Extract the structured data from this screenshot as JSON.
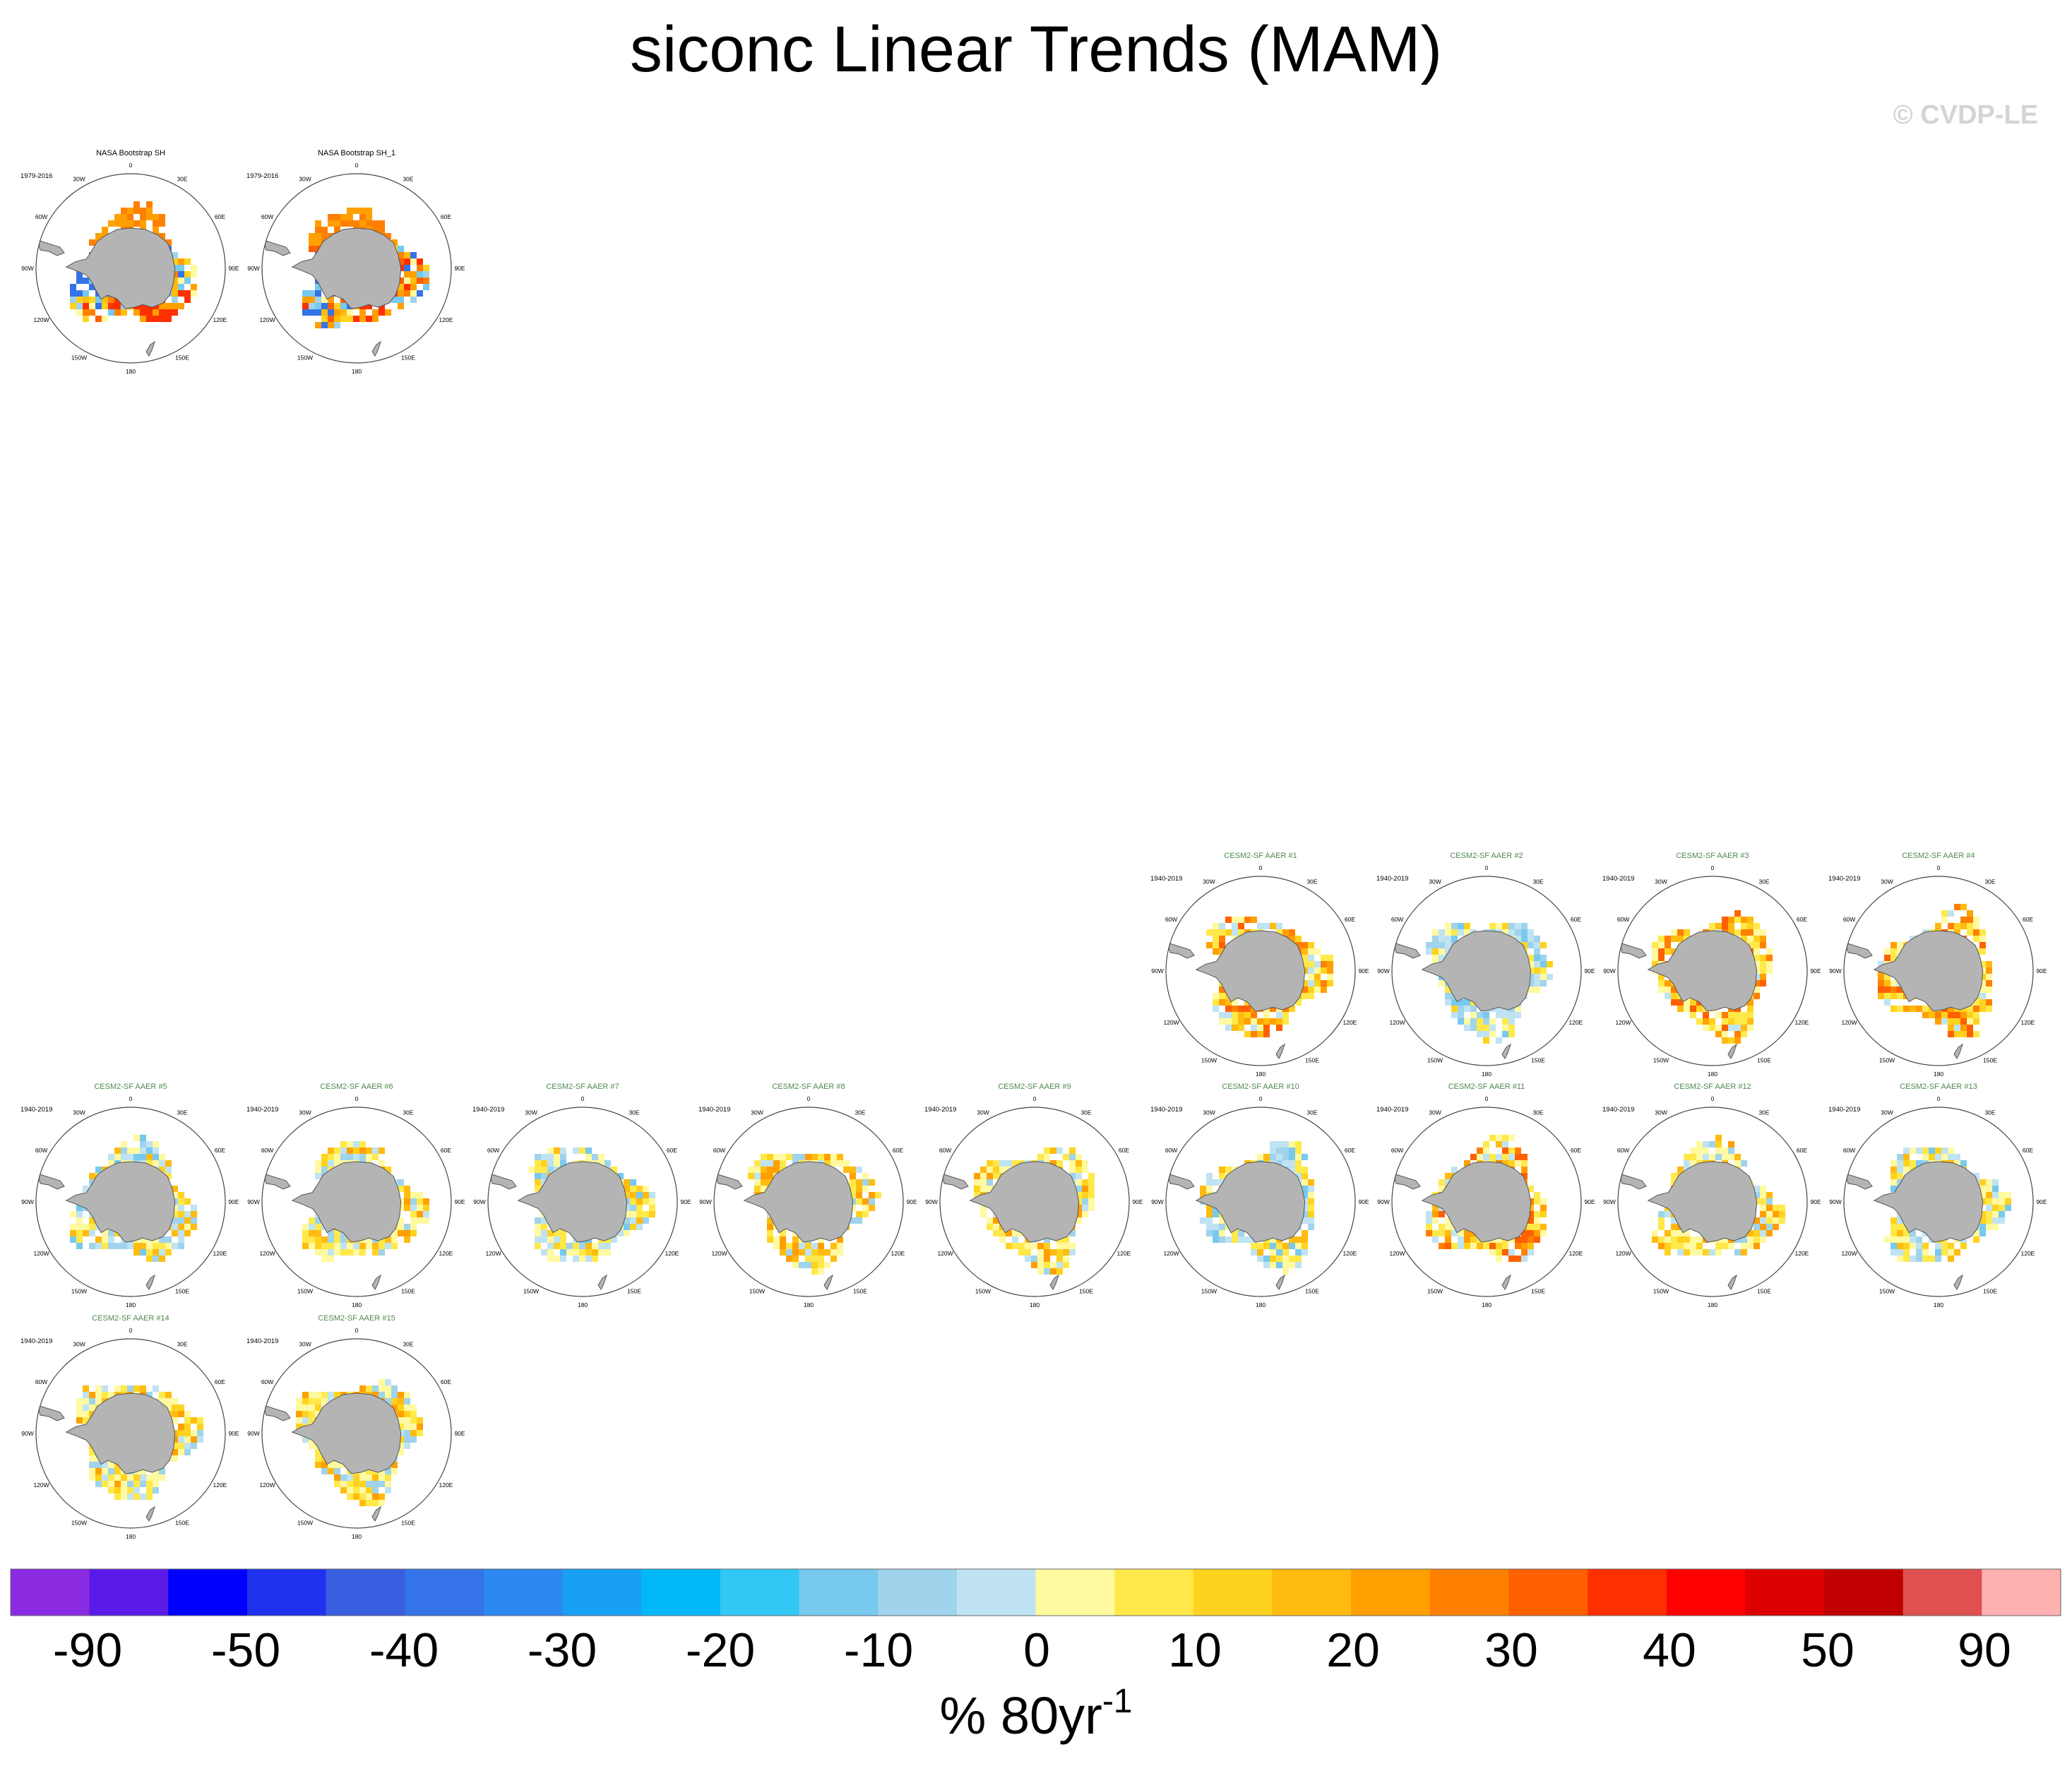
{
  "title": "siconc Linear Trends (MAM)",
  "copyright": "© CVDP-LE",
  "chart_data": {
    "type": "heatmap",
    "title": "siconc Linear Trends (MAM)",
    "map_projection": "south polar stereographic",
    "map_labels": {
      "meridians": [
        "0",
        "30E",
        "60E",
        "90E",
        "120E",
        "150E",
        "180",
        "150W",
        "120W",
        "90W",
        "60W",
        "30W"
      ]
    },
    "panels": [
      {
        "title": "NASA Bootstrap SH",
        "period": "1979-2016",
        "pattern": "obs"
      },
      {
        "title": "NASA Bootstrap SH_1",
        "period": "1979-2016",
        "pattern": "obs"
      },
      {
        "title": "CESM2-SF AAER #1",
        "period": "1940-2019",
        "pattern": "warm"
      },
      {
        "title": "CESM2-SF AAER #2",
        "period": "1940-2019",
        "pattern": "cool"
      },
      {
        "title": "CESM2-SF AAER #3",
        "period": "1940-2019",
        "pattern": "warm"
      },
      {
        "title": "CESM2-SF AAER #4",
        "period": "1940-2019",
        "pattern": "warm"
      },
      {
        "title": "CESM2-SF AAER #5",
        "period": "1940-2019",
        "pattern": "mixed"
      },
      {
        "title": "CESM2-SF AAER #6",
        "period": "1940-2019",
        "pattern": "mild"
      },
      {
        "title": "CESM2-SF AAER #7",
        "period": "1940-2019",
        "pattern": "mixed"
      },
      {
        "title": "CESM2-SF AAER #8",
        "period": "1940-2019",
        "pattern": "mild"
      },
      {
        "title": "CESM2-SF AAER #9",
        "period": "1940-2019",
        "pattern": "mild"
      },
      {
        "title": "CESM2-SF AAER #10",
        "period": "1940-2019",
        "pattern": "mixed"
      },
      {
        "title": "CESM2-SF AAER #11",
        "period": "1940-2019",
        "pattern": "warm"
      },
      {
        "title": "CESM2-SF AAER #12",
        "period": "1940-2019",
        "pattern": "mild"
      },
      {
        "title": "CESM2-SF AAER #13",
        "period": "1940-2019",
        "pattern": "mixed"
      },
      {
        "title": "CESM2-SF AAER #14",
        "period": "1940-2019",
        "pattern": "mild"
      },
      {
        "title": "CESM2-SF AAER #15",
        "period": "1940-2019",
        "pattern": "mild"
      }
    ],
    "colorbar": {
      "units": "% 80yr",
      "units_superscript": "-1",
      "colors": [
        "#8a2be2",
        "#5a1ae8",
        "#0000ff",
        "#1f33ee",
        "#3a5ee0",
        "#3573e8",
        "#2a88f0",
        "#18a0f5",
        "#00b8f8",
        "#33c7f5",
        "#77c9ee",
        "#a0d3ec",
        "#bfe3f3",
        "#fff9a0",
        "#ffe94a",
        "#ffd21f",
        "#ffbb10",
        "#ffa000",
        "#ff8000",
        "#ff6000",
        "#ff3000",
        "#ff0000",
        "#dc0000",
        "#c00000",
        "#e05050",
        "#ffb0b0"
      ],
      "tick_labels": [
        "-90",
        "-50",
        "-40",
        "-30",
        "-20",
        "-10",
        "0",
        "10",
        "20",
        "30",
        "40",
        "50",
        "90"
      ]
    },
    "colors": {
      "land": "#b4b4b4",
      "panel_title_obs": "#000000",
      "panel_title_model": "#4d8a4d"
    }
  }
}
